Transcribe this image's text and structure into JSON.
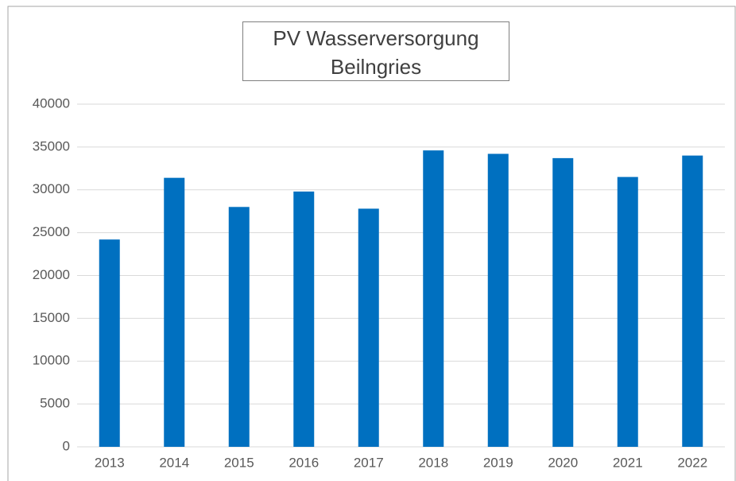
{
  "chart_data": {
    "type": "bar",
    "title": "PV Wasserversorgung Beilngries",
    "categories": [
      "2013",
      "2014",
      "2015",
      "2016",
      "2017",
      "2018",
      "2019",
      "2020",
      "2021",
      "2022"
    ],
    "values": [
      24200,
      31400,
      28000,
      29800,
      27800,
      34600,
      34200,
      33700,
      31500,
      34000
    ],
    "color": "#0070c0",
    "ylim": [
      0,
      40000
    ],
    "yticks": [
      0,
      5000,
      10000,
      15000,
      20000,
      25000,
      30000,
      35000,
      40000
    ],
    "grid": true
  }
}
